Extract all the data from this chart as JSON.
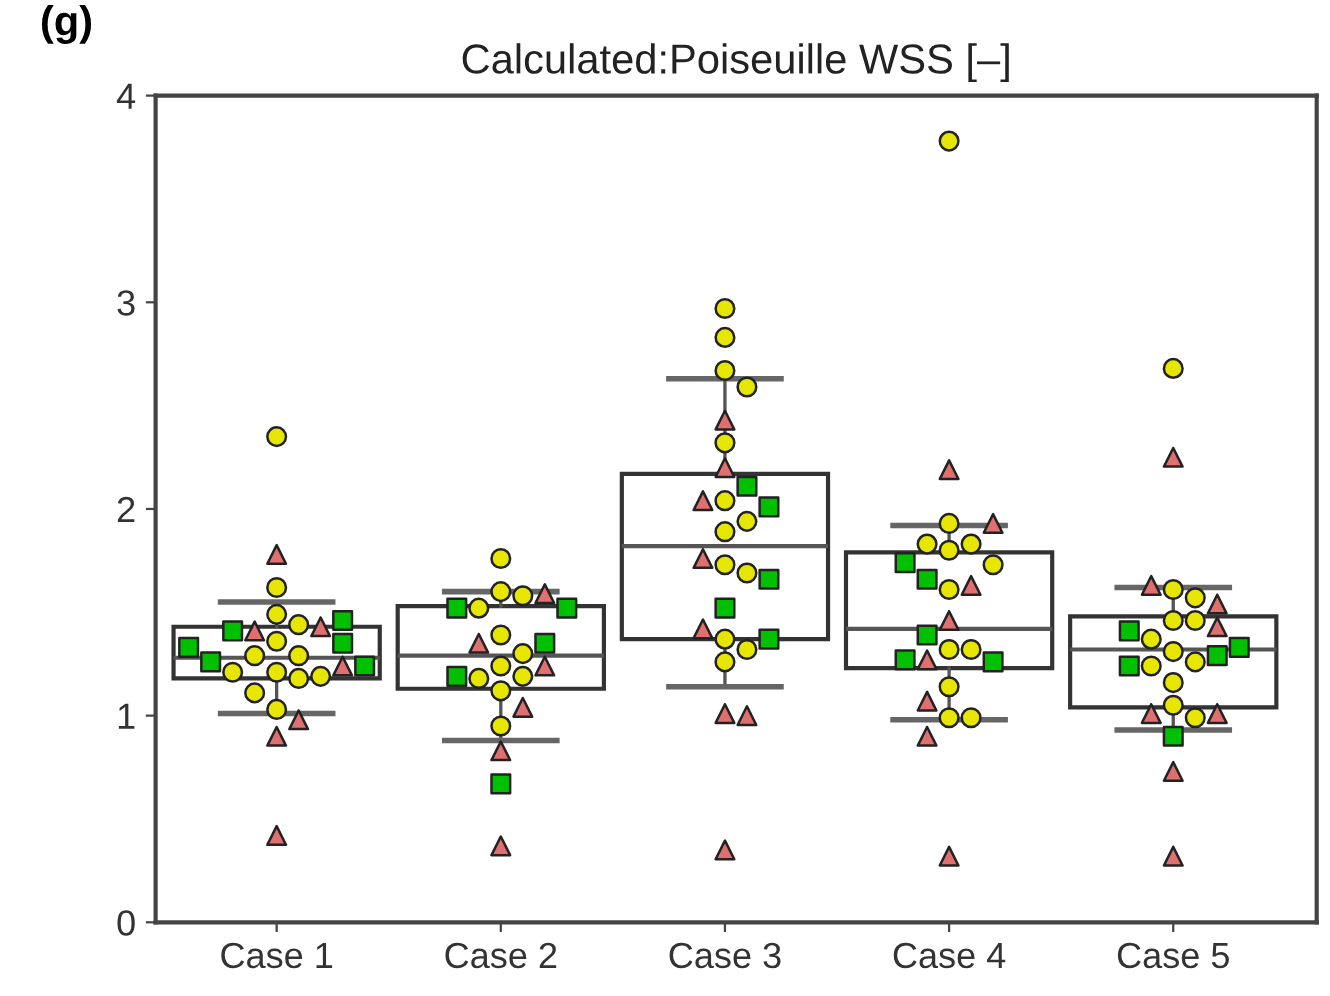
{
  "chart_data": {
    "type": "box",
    "title": "Calculated:Poiseuille WSS [–]",
    "annotations": [
      "(g)"
    ],
    "categories": [
      "Case 1",
      "Case 2",
      "Case 3",
      "Case 4",
      "Case 5"
    ],
    "boxes": [
      {
        "low": 1.01,
        "q1": 1.18,
        "median": 1.28,
        "q3": 1.43,
        "high": 1.55
      },
      {
        "low": 0.88,
        "q1": 1.13,
        "median": 1.29,
        "q3": 1.53,
        "high": 1.6
      },
      {
        "low": 1.14,
        "q1": 1.37,
        "median": 1.82,
        "q3": 2.17,
        "high": 2.63
      },
      {
        "low": 0.98,
        "q1": 1.23,
        "median": 1.42,
        "q3": 1.79,
        "high": 1.92
      },
      {
        "low": 0.93,
        "q1": 1.04,
        "median": 1.32,
        "q3": 1.48,
        "high": 1.62
      }
    ],
    "series": [
      {
        "type": "scatter",
        "marker": "circle",
        "color": "#e6e600",
        "x": [
          "Case 1",
          "Case 1",
          "Case 1",
          "Case 1",
          "Case 1",
          "Case 1",
          "Case 1",
          "Case 1",
          "Case 1",
          "Case 1",
          "Case 1",
          "Case 1",
          "Case 1",
          "Case 2",
          "Case 2",
          "Case 2",
          "Case 2",
          "Case 2",
          "Case 2",
          "Case 2",
          "Case 2",
          "Case 2",
          "Case 2",
          "Case 2",
          "Case 3",
          "Case 3",
          "Case 3",
          "Case 3",
          "Case 3",
          "Case 3",
          "Case 3",
          "Case 3",
          "Case 3",
          "Case 3",
          "Case 3",
          "Case 3",
          "Case 3",
          "Case 4",
          "Case 4",
          "Case 4",
          "Case 4",
          "Case 4",
          "Case 4",
          "Case 4",
          "Case 4",
          "Case 4",
          "Case 4",
          "Case 4",
          "Case 4",
          "Case 5",
          "Case 5",
          "Case 5",
          "Case 5",
          "Case 5",
          "Case 5",
          "Case 5",
          "Case 5",
          "Case 5",
          "Case 5",
          "Case 5",
          "Case 5"
        ],
        "values": [
          2.35,
          1.62,
          1.49,
          1.36,
          1.44,
          1.29,
          1.29,
          1.21,
          1.19,
          1.18,
          1.11,
          1.03,
          1.21,
          1.76,
          1.6,
          1.58,
          1.52,
          1.39,
          1.3,
          1.24,
          1.19,
          1.12,
          0.95,
          1.18,
          2.97,
          2.83,
          2.67,
          2.59,
          2.32,
          2.04,
          1.94,
          1.89,
          1.73,
          1.69,
          1.37,
          1.32,
          1.26,
          3.78,
          1.93,
          1.83,
          1.8,
          1.83,
          1.73,
          1.61,
          1.32,
          1.32,
          1.14,
          0.99,
          0.99,
          2.68,
          1.61,
          1.57,
          1.46,
          1.46,
          1.31,
          1.37,
          1.26,
          1.16,
          1.24,
          1.05,
          0.99
        ]
      },
      {
        "type": "scatter",
        "marker": "triangle",
        "color": "#e07070",
        "x": [
          "Case 1",
          "Case 1",
          "Case 1",
          "Case 1",
          "Case 1",
          "Case 1",
          "Case 1",
          "Case 2",
          "Case 2",
          "Case 2",
          "Case 2",
          "Case 2",
          "Case 2",
          "Case 3",
          "Case 3",
          "Case 3",
          "Case 3",
          "Case 3",
          "Case 3",
          "Case 3",
          "Case 3",
          "Case 4",
          "Case 4",
          "Case 4",
          "Case 4",
          "Case 4",
          "Case 4",
          "Case 4",
          "Case 4",
          "Case 5",
          "Case 5",
          "Case 5",
          "Case 5",
          "Case 5",
          "Case 5",
          "Case 5",
          "Case 5"
        ],
        "values": [
          1.78,
          1.41,
          1.24,
          0.98,
          0.9,
          0.42,
          1.43,
          1.59,
          1.35,
          1.24,
          1.04,
          0.83,
          0.37,
          2.43,
          2.2,
          2.04,
          1.76,
          1.42,
          1.01,
          1.0,
          0.35,
          2.19,
          1.93,
          1.63,
          1.46,
          1.27,
          1.07,
          0.9,
          0.32,
          2.25,
          1.63,
          1.54,
          1.43,
          1.01,
          1.01,
          0.73,
          0.32
        ]
      },
      {
        "type": "scatter",
        "marker": "square",
        "color": "#00c000",
        "x": [
          "Case 1",
          "Case 1",
          "Case 1",
          "Case 1",
          "Case 1",
          "Case 1",
          "Case 2",
          "Case 2",
          "Case 2",
          "Case 2",
          "Case 2",
          "Case 3",
          "Case 3",
          "Case 3",
          "Case 3",
          "Case 3",
          "Case 4",
          "Case 4",
          "Case 4",
          "Case 4",
          "Case 4",
          "Case 5",
          "Case 5",
          "Case 5",
          "Case 5",
          "Case 5"
        ],
        "values": [
          1.41,
          1.46,
          1.35,
          1.26,
          1.24,
          1.33,
          1.52,
          1.52,
          1.35,
          1.19,
          0.67,
          2.11,
          2.01,
          1.66,
          1.52,
          1.37,
          1.74,
          1.66,
          1.39,
          1.26,
          1.27,
          1.41,
          1.33,
          1.29,
          1.24,
          0.9
        ]
      }
    ],
    "ylim": [
      0,
      4
    ],
    "yticks": [
      0,
      1,
      2,
      3,
      4
    ],
    "grid": false
  }
}
